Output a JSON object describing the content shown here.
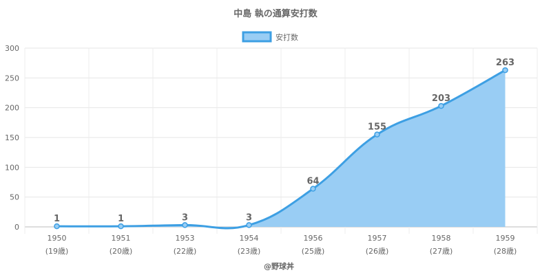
{
  "chart_data": {
    "type": "area",
    "title": "中島 執の通算安打数",
    "legend": {
      "label": "安打数",
      "position": "top-center"
    },
    "categories": [
      "1950",
      "1951",
      "1953",
      "1954",
      "1956",
      "1957",
      "1958",
      "1959"
    ],
    "sub_labels": [
      "(19歳)",
      "(20歳)",
      "(22歳)",
      "(23歳)",
      "(25歳)",
      "(26歳)",
      "(27歳)",
      "(28歳)"
    ],
    "series": [
      {
        "name": "安打数",
        "values": [
          1,
          1,
          3,
          3,
          64,
          155,
          203,
          263
        ]
      }
    ],
    "data_labels": [
      "1",
      "1",
      "3",
      "3",
      "64",
      "155",
      "203",
      "263"
    ],
    "y_ticks": [
      "0",
      "50",
      "100",
      "150",
      "200",
      "250",
      "300"
    ],
    "ylim": [
      0,
      300
    ],
    "grid": true,
    "colors": {
      "line": "#3d9fe3",
      "fill": "#99cdf4"
    },
    "credit": "@野球丼"
  }
}
